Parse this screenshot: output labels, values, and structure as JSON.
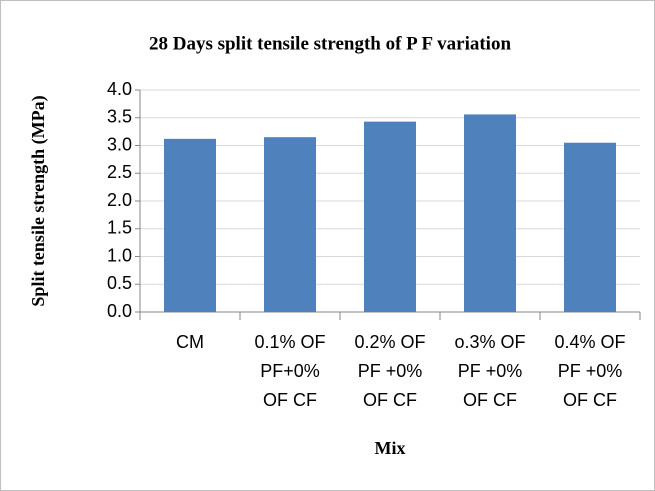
{
  "chart_data": {
    "type": "bar",
    "title": "28 Days split tensile strength of P F variation",
    "x_label": "Mix",
    "y_label": "Split tensile strength (MPa)",
    "categories": [
      "CM",
      "0.1% OF PF+0% OF CF",
      "0.2% OF PF +0% OF CF",
      "o.3% OF PF +0% OF CF",
      "0.4% OF PF +0% OF CF"
    ],
    "values": [
      3.12,
      3.15,
      3.43,
      3.56,
      3.05
    ],
    "color": "#4f81bd",
    "ylim": [
      0,
      4
    ],
    "yticks": [
      {
        "value": 0,
        "label": "0.0"
      },
      0.5,
      {
        "value": 1,
        "label": "1.0"
      },
      1.5,
      {
        "value": 2,
        "label": "2.0"
      },
      2.5,
      {
        "value": 3,
        "label": "3.0"
      },
      3.5,
      {
        "value": 4,
        "label": "4.0"
      }
    ],
    "grid": true
  }
}
